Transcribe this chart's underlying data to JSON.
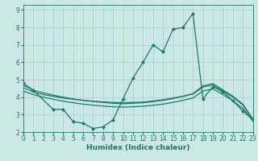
{
  "x_main": [
    0,
    1,
    3,
    4,
    5,
    6,
    7,
    8,
    9,
    10,
    11,
    12,
    13,
    14,
    15,
    16,
    17,
    18,
    19,
    20,
    21,
    22,
    23
  ],
  "y_main": [
    4.8,
    4.4,
    3.3,
    3.3,
    2.6,
    2.5,
    2.2,
    2.3,
    2.7,
    3.9,
    5.1,
    6.0,
    7.0,
    6.6,
    7.9,
    8.0,
    8.8,
    3.9,
    4.6,
    4.3,
    3.8,
    3.2,
    2.7
  ],
  "x_trend1": [
    0,
    1,
    2,
    3,
    4,
    5,
    6,
    7,
    8,
    9,
    10,
    11,
    12,
    13,
    14,
    15,
    16,
    17,
    18,
    19,
    20,
    21,
    22,
    23
  ],
  "y_trend1": [
    4.55,
    4.3,
    4.15,
    4.05,
    3.95,
    3.88,
    3.82,
    3.77,
    3.73,
    3.7,
    3.68,
    3.7,
    3.72,
    3.78,
    3.85,
    3.95,
    4.05,
    4.18,
    4.58,
    4.7,
    4.35,
    4.0,
    3.55,
    2.72
  ],
  "x_trend2": [
    0,
    1,
    2,
    3,
    4,
    5,
    6,
    7,
    8,
    9,
    10,
    11,
    12,
    13,
    14,
    15,
    16,
    17,
    18,
    19,
    20,
    21,
    22,
    23
  ],
  "y_trend2": [
    4.35,
    4.15,
    4.0,
    3.88,
    3.77,
    3.68,
    3.6,
    3.54,
    3.49,
    3.45,
    3.43,
    3.45,
    3.48,
    3.53,
    3.6,
    3.7,
    3.82,
    3.95,
    4.35,
    4.48,
    4.15,
    3.8,
    3.35,
    2.65
  ],
  "x_trend3": [
    0,
    1,
    2,
    3,
    4,
    5,
    6,
    7,
    8,
    9,
    10,
    11,
    12,
    13,
    14,
    15,
    16,
    17,
    18,
    19,
    20,
    21,
    22,
    23
  ],
  "y_trend3": [
    4.7,
    4.4,
    4.25,
    4.12,
    4.0,
    3.9,
    3.82,
    3.75,
    3.7,
    3.65,
    3.62,
    3.65,
    3.68,
    3.75,
    3.82,
    3.92,
    4.05,
    4.2,
    4.65,
    4.78,
    4.42,
    4.05,
    3.6,
    2.75
  ],
  "background_color": "#cce8e4",
  "grid_color": "#aacfcb",
  "line_color": "#1a7a6a",
  "xlim": [
    0,
    23
  ],
  "ylim": [
    2.0,
    9.3
  ],
  "yticks": [
    2,
    3,
    4,
    5,
    6,
    7,
    8,
    9
  ],
  "xticks": [
    0,
    1,
    2,
    3,
    4,
    5,
    6,
    7,
    8,
    9,
    10,
    11,
    12,
    13,
    14,
    15,
    16,
    17,
    18,
    19,
    20,
    21,
    22,
    23
  ],
  "xlabel": "Humidex (Indice chaleur)",
  "xlabel_fontsize": 6.5,
  "tick_fontsize": 5.5,
  "marker_size": 2.2,
  "line_width": 0.9
}
